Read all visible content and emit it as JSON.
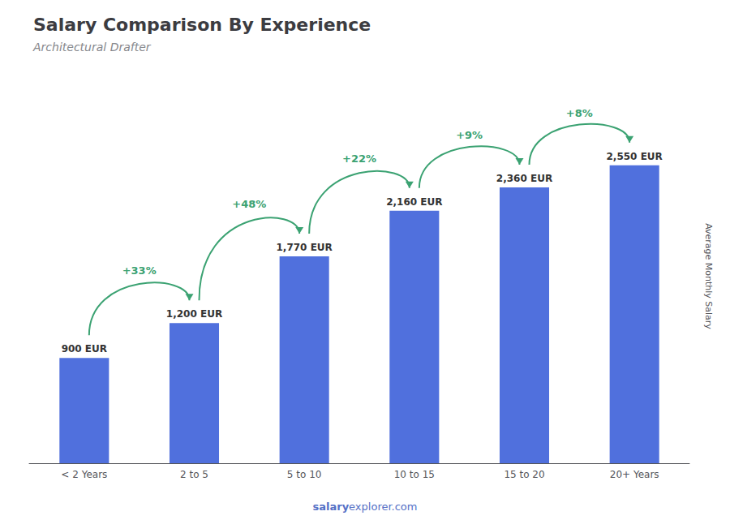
{
  "chart_data": {
    "type": "bar",
    "title": "Salary Comparison By Experience",
    "subtitle": "Architectural Drafter",
    "categories": [
      "< 2 Years",
      "2 to 5",
      "5 to 10",
      "10 to 15",
      "15 to 20",
      "20+ Years"
    ],
    "values": [
      900,
      1200,
      1770,
      2160,
      2360,
      2550
    ],
    "value_labels": [
      "900 EUR",
      "1,200 EUR",
      "1,770 EUR",
      "2,160 EUR",
      "2,360 EUR",
      "2,550 EUR"
    ],
    "data_labels": true,
    "annotations": [
      "+33%",
      "+48%",
      "+22%",
      "+9%",
      "+8%"
    ],
    "ylabel": "Average Monthly Salary",
    "footer": [
      "salary",
      "explorer.com"
    ],
    "ylim": [
      0,
      3200
    ],
    "grid": false,
    "tick_labels": "x"
  }
}
